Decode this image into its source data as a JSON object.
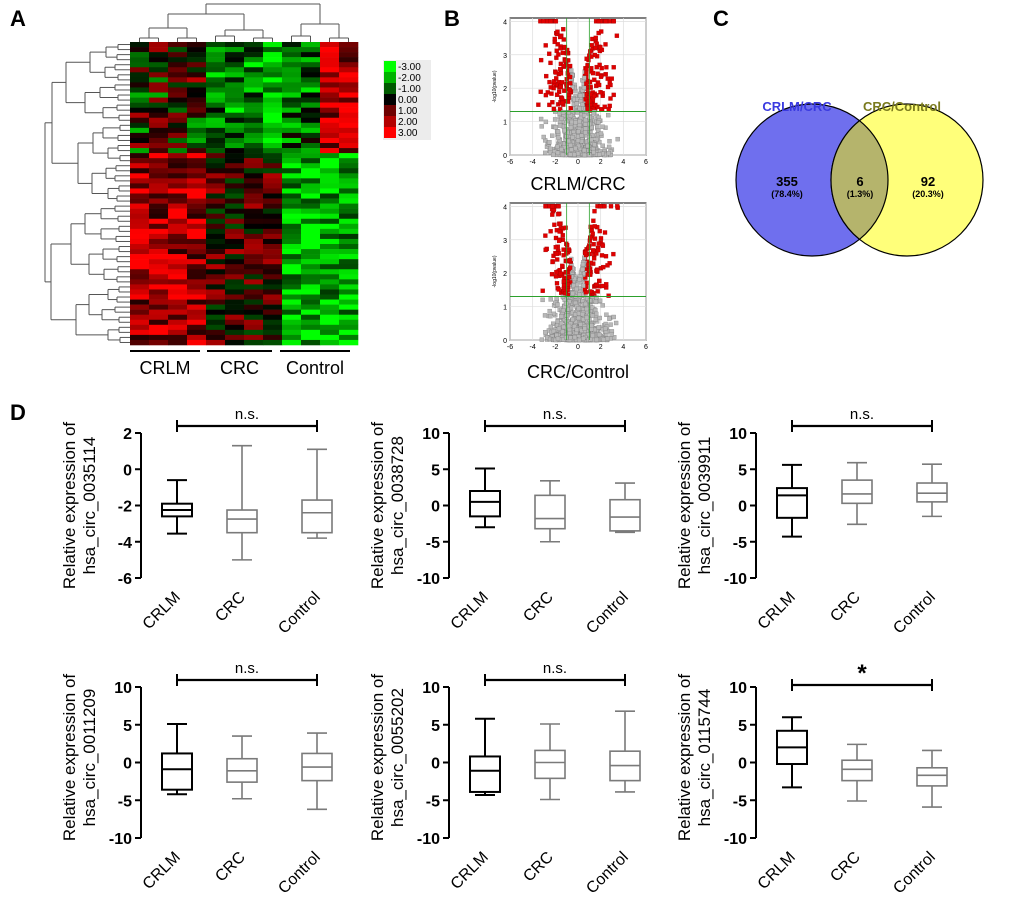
{
  "panels": {
    "A": "A",
    "B": "B",
    "C": "C",
    "D": "D"
  },
  "heatmap": {
    "groups": [
      "CRLM",
      "CRC",
      "Control"
    ],
    "legend_ticks": [
      "-3.00",
      "-2.00",
      "-1.00",
      "0.00",
      "1.00",
      "2.00",
      "3.00"
    ],
    "colors": {
      "low": "#00ff00",
      "mid": "#000000",
      "high": "#ff0000"
    }
  },
  "volcano": {
    "xlabel_ticks": [
      "-6",
      "-4",
      "-2",
      "0",
      "2",
      "4",
      "6"
    ],
    "ylabel_ticks": [
      "0",
      "1",
      "2",
      "3",
      "4"
    ],
    "ylabel": "-log10(pvalue)",
    "plots": [
      {
        "title": "CRLM/CRC"
      },
      {
        "title": "CRC/Control"
      }
    ]
  },
  "venn": {
    "left_label": "CRLM/CRC",
    "right_label": "CRC/Control",
    "left_count": "355",
    "left_pct": "(78.4%)",
    "overlap_count": "6",
    "overlap_pct": "(1.3%)",
    "right_count": "92",
    "right_pct": "(20.3%)",
    "colors": {
      "left": "#6f6fee",
      "right": "#ffff7a",
      "overlap": "#b5b46c",
      "left_label": "#3a3ae0",
      "right_label": "#7a7a1e"
    }
  },
  "chart_data": [
    {
      "type": "box",
      "gene": "hsa_circ_0035114",
      "ylabel_line1": "Relative expression of",
      "ylabel_line2": "hsa_circ_0035114",
      "categories": [
        "CRLM",
        "CRC",
        "Control"
      ],
      "ylim": [
        -6,
        2
      ],
      "yticks": [
        "2",
        "0",
        "-2",
        "-4",
        "-6"
      ],
      "ytick_values": [
        2,
        0,
        -2,
        -4,
        -6
      ],
      "boxes": [
        {
          "min": -3.55,
          "q1": -2.6,
          "median": -2.25,
          "q3": -1.9,
          "max": -0.6
        },
        {
          "min": -5.0,
          "q1": -3.5,
          "median": -2.75,
          "q3": -2.25,
          "max": 1.3
        },
        {
          "min": -3.8,
          "q1": -3.5,
          "median": -2.4,
          "q3": -1.7,
          "max": 1.1
        }
      ],
      "significance": "n.s.",
      "sig_from": 0,
      "sig_to": 2
    },
    {
      "type": "box",
      "gene": "hsa_circ_0038728",
      "ylabel_line1": "Relative expression of",
      "ylabel_line2": "hsa_circ_0038728",
      "categories": [
        "CRLM",
        "CRC",
        "Control"
      ],
      "ylim": [
        -10,
        10
      ],
      "yticks": [
        "10",
        "5",
        "0",
        "-5",
        "-10"
      ],
      "ytick_values": [
        10,
        5,
        0,
        -5,
        -10
      ],
      "boxes": [
        {
          "min": -3.0,
          "q1": -1.5,
          "median": 0.5,
          "q3": 2.0,
          "max": 5.1
        },
        {
          "min": -5.0,
          "q1": -3.2,
          "median": -1.8,
          "q3": 1.4,
          "max": 3.4
        },
        {
          "min": -3.7,
          "q1": -3.5,
          "median": -1.6,
          "q3": 0.8,
          "max": 3.1
        }
      ],
      "significance": "n.s.",
      "sig_from": 0,
      "sig_to": 2
    },
    {
      "type": "box",
      "gene": "hsa_circ_0039911",
      "ylabel_line1": "Relative expression of",
      "ylabel_line2": "hsa_circ_0039911",
      "categories": [
        "CRLM",
        "CRC",
        "Control"
      ],
      "ylim": [
        -10,
        10
      ],
      "yticks": [
        "10",
        "5",
        "0",
        "-5",
        "-10"
      ],
      "ytick_values": [
        10,
        5,
        0,
        -5,
        -10
      ],
      "boxes": [
        {
          "min": -4.3,
          "q1": -1.7,
          "median": 1.4,
          "q3": 2.4,
          "max": 5.6
        },
        {
          "min": -2.6,
          "q1": 0.3,
          "median": 1.6,
          "q3": 3.5,
          "max": 5.9
        },
        {
          "min": -1.5,
          "q1": 0.5,
          "median": 1.7,
          "q3": 3.1,
          "max": 5.7
        }
      ],
      "significance": "n.s.",
      "sig_from": 0,
      "sig_to": 2
    },
    {
      "type": "box",
      "gene": "hsa_circ_0011209",
      "ylabel_line1": "Relative expression of",
      "ylabel_line2": "hsa_circ_0011209",
      "categories": [
        "CRLM",
        "CRC",
        "Control"
      ],
      "ylim": [
        -10,
        10
      ],
      "yticks": [
        "10",
        "5",
        "0",
        "-5",
        "-10"
      ],
      "ytick_values": [
        10,
        5,
        0,
        -5,
        -10
      ],
      "boxes": [
        {
          "min": -4.2,
          "q1": -3.6,
          "median": -0.9,
          "q3": 1.2,
          "max": 5.1
        },
        {
          "min": -4.8,
          "q1": -2.6,
          "median": -1.1,
          "q3": 0.5,
          "max": 3.5
        },
        {
          "min": -6.2,
          "q1": -2.4,
          "median": -0.6,
          "q3": 1.2,
          "max": 3.9
        }
      ],
      "significance": "n.s.",
      "sig_from": 0,
      "sig_to": 2
    },
    {
      "type": "box",
      "gene": "hsa_circ_0055202",
      "ylabel_line1": "Relative expression of",
      "ylabel_line2": "hsa_circ_0055202",
      "categories": [
        "CRLM",
        "CRC",
        "Control"
      ],
      "ylim": [
        -10,
        10
      ],
      "yticks": [
        "10",
        "5",
        "0",
        "-5",
        "-10"
      ],
      "ytick_values": [
        10,
        5,
        0,
        -5,
        -10
      ],
      "boxes": [
        {
          "min": -4.3,
          "q1": -3.9,
          "median": -1.1,
          "q3": 0.8,
          "max": 5.8
        },
        {
          "min": -4.9,
          "q1": -2.1,
          "median": 0.0,
          "q3": 1.6,
          "max": 5.1
        },
        {
          "min": -3.9,
          "q1": -2.4,
          "median": -0.4,
          "q3": 1.5,
          "max": 6.8
        }
      ],
      "significance": "n.s.",
      "sig_from": 0,
      "sig_to": 2
    },
    {
      "type": "box",
      "gene": "hsa_circ_0115744",
      "ylabel_line1": "Relative expression of",
      "ylabel_line2": "hsa_circ_0115744",
      "categories": [
        "CRLM",
        "CRC",
        "Control"
      ],
      "ylim": [
        -10,
        10
      ],
      "yticks": [
        "10",
        "5",
        "0",
        "-5",
        "-10"
      ],
      "ytick_values": [
        10,
        5,
        0,
        -5,
        -10
      ],
      "boxes": [
        {
          "min": -3.3,
          "q1": -0.2,
          "median": 2.0,
          "q3": 4.2,
          "max": 6.0
        },
        {
          "min": -5.1,
          "q1": -2.4,
          "median": -0.9,
          "q3": 0.3,
          "max": 2.4
        },
        {
          "min": -5.9,
          "q1": -3.1,
          "median": -1.7,
          "q3": -0.7,
          "max": 1.6
        }
      ],
      "significance": "*",
      "sig_from": 0,
      "sig_to": 2
    }
  ]
}
